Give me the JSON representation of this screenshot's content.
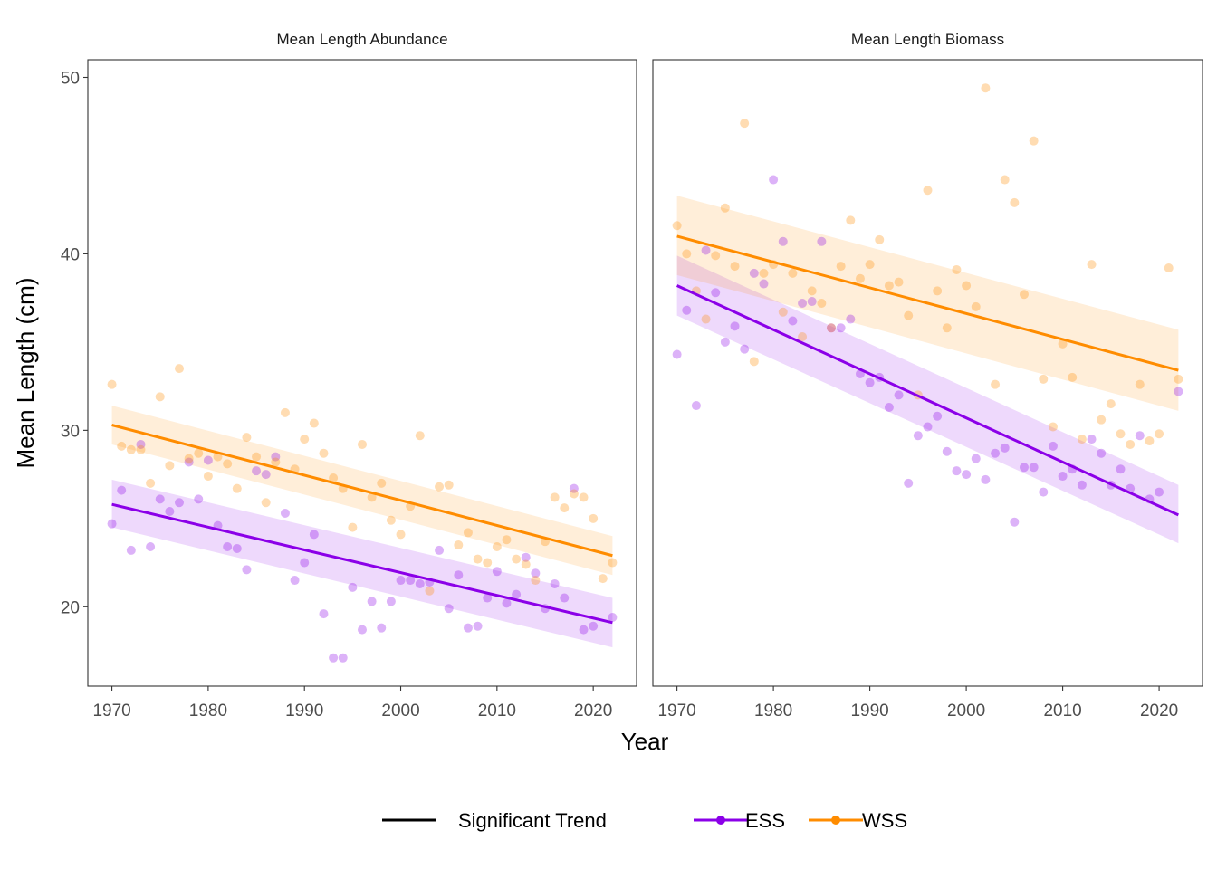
{
  "chart_data": {
    "type": "scatter",
    "xlabel": "Year",
    "ylabel": "Mean Length (cm)",
    "xlim": [
      1967.5,
      2024.5
    ],
    "ylim": [
      15.5,
      51
    ],
    "xticks": [
      1970,
      1980,
      1990,
      2000,
      2010,
      2020
    ],
    "yticks": [
      20,
      30,
      40,
      50
    ],
    "grid": false,
    "legend": {
      "position": "bottom",
      "entries": [
        {
          "label": "Significant Trend",
          "color": "#000000"
        },
        {
          "label": "ESS",
          "color": "#8B00E8"
        },
        {
          "label": "WSS",
          "color": "#FF8C00"
        }
      ]
    },
    "panels": [
      {
        "title": "Mean Length Abundance",
        "series": [
          {
            "name": "ESS",
            "color": "#8B00E8",
            "x": [
              1970,
              1971,
              1972,
              1973,
              1974,
              1975,
              1976,
              1977,
              1978,
              1979,
              1980,
              1981,
              1982,
              1983,
              1984,
              1985,
              1986,
              1987,
              1988,
              1989,
              1990,
              1991,
              1992,
              1993,
              1994,
              1995,
              1996,
              1997,
              1998,
              1999,
              2000,
              2001,
              2002,
              2003,
              2004,
              2005,
              2006,
              2007,
              2008,
              2009,
              2010,
              2011,
              2012,
              2013,
              2014,
              2015,
              2016,
              2017,
              2018,
              2019,
              2020,
              2022
            ],
            "y": [
              24.7,
              26.6,
              23.2,
              29.2,
              23.4,
              26.1,
              25.4,
              25.9,
              28.2,
              26.1,
              28.3,
              24.6,
              23.4,
              23.3,
              22.1,
              27.7,
              27.5,
              28.5,
              25.3,
              21.5,
              22.5,
              24.1,
              19.6,
              17.1,
              17.1,
              21.1,
              18.7,
              20.3,
              18.8,
              20.3,
              21.5,
              21.5,
              21.3,
              21.4,
              23.2,
              19.9,
              21.8,
              18.8,
              18.9,
              20.5,
              22.0,
              20.2,
              20.7,
              22.8,
              21.9,
              19.9,
              21.3,
              20.5,
              26.7,
              18.7,
              18.9,
              19.4
            ],
            "trend": {
              "x": [
                1970,
                2022
              ],
              "y": [
                25.8,
                19.1
              ],
              "ci_low": [
                24.5,
                17.7
              ],
              "ci_high": [
                27.2,
                20.5
              ]
            }
          },
          {
            "name": "WSS",
            "color": "#FF8C00",
            "x": [
              1970,
              1971,
              1972,
              1973,
              1974,
              1975,
              1976,
              1977,
              1978,
              1979,
              1980,
              1981,
              1982,
              1983,
              1984,
              1985,
              1986,
              1987,
              1988,
              1989,
              1990,
              1991,
              1992,
              1993,
              1994,
              1995,
              1996,
              1997,
              1998,
              1999,
              2000,
              2001,
              2002,
              2003,
              2004,
              2005,
              2006,
              2007,
              2008,
              2009,
              2010,
              2011,
              2012,
              2013,
              2014,
              2015,
              2016,
              2017,
              2018,
              2019,
              2020,
              2021,
              2022
            ],
            "y": [
              32.6,
              29.1,
              28.9,
              28.9,
              27.0,
              31.9,
              28.0,
              33.5,
              28.4,
              28.7,
              27.4,
              28.5,
              28.1,
              26.7,
              29.6,
              28.5,
              25.9,
              28.2,
              31.0,
              27.8,
              29.5,
              30.4,
              28.7,
              27.3,
              26.7,
              24.5,
              29.2,
              26.2,
              27.0,
              24.9,
              24.1,
              25.7,
              29.7,
              20.9,
              26.8,
              26.9,
              23.5,
              24.2,
              22.7,
              22.5,
              23.4,
              23.8,
              22.7,
              22.4,
              21.5,
              23.7,
              26.2,
              25.6,
              26.4,
              26.2,
              25.0,
              21.6,
              22.5
            ],
            "trend": {
              "x": [
                1970,
                2022
              ],
              "y": [
                30.3,
                22.9
              ],
              "ci_low": [
                29.2,
                21.8
              ],
              "ci_high": [
                31.4,
                24.0
              ]
            }
          }
        ]
      },
      {
        "title": "Mean Length Biomass",
        "series": [
          {
            "name": "ESS",
            "color": "#8B00E8",
            "x": [
              1970,
              1971,
              1972,
              1973,
              1974,
              1975,
              1976,
              1977,
              1978,
              1979,
              1980,
              1981,
              1982,
              1983,
              1984,
              1985,
              1986,
              1987,
              1988,
              1989,
              1990,
              1991,
              1992,
              1993,
              1994,
              1995,
              1996,
              1997,
              1998,
              1999,
              2000,
              2001,
              2002,
              2003,
              2004,
              2005,
              2006,
              2007,
              2008,
              2009,
              2010,
              2011,
              2012,
              2013,
              2014,
              2015,
              2016,
              2017,
              2018,
              2019,
              2020,
              2022
            ],
            "y": [
              34.3,
              36.8,
              31.4,
              40.2,
              37.8,
              35.0,
              35.9,
              34.6,
              38.9,
              38.3,
              44.2,
              40.7,
              36.2,
              37.2,
              37.3,
              40.7,
              35.8,
              35.8,
              36.3,
              33.2,
              32.7,
              33.0,
              31.3,
              32.0,
              27.0,
              29.7,
              30.2,
              30.8,
              28.8,
              27.7,
              27.5,
              28.4,
              27.2,
              28.7,
              29.0,
              24.8,
              27.9,
              27.9,
              26.5,
              29.1,
              27.4,
              27.8,
              26.9,
              29.5,
              28.7,
              26.9,
              27.8,
              26.7,
              29.7,
              26.1,
              26.5,
              32.2
            ],
            "trend": {
              "x": [
                1970,
                2022
              ],
              "y": [
                38.2,
                25.2
              ],
              "ci_low": [
                36.5,
                23.6
              ],
              "ci_high": [
                39.9,
                26.9
              ]
            }
          },
          {
            "name": "WSS",
            "color": "#FF8C00",
            "x": [
              1970,
              1971,
              1972,
              1973,
              1974,
              1975,
              1976,
              1977,
              1978,
              1979,
              1980,
              1981,
              1982,
              1983,
              1984,
              1985,
              1986,
              1987,
              1988,
              1989,
              1990,
              1991,
              1992,
              1993,
              1994,
              1995,
              1996,
              1997,
              1998,
              1999,
              2000,
              2001,
              2002,
              2003,
              2004,
              2005,
              2006,
              2007,
              2008,
              2009,
              2010,
              2011,
              2012,
              2013,
              2014,
              2015,
              2016,
              2017,
              2018,
              2019,
              2020,
              2021,
              2022
            ],
            "y": [
              41.6,
              40.0,
              37.9,
              36.3,
              39.9,
              42.6,
              39.3,
              47.4,
              33.9,
              38.9,
              39.4,
              36.7,
              38.9,
              35.3,
              37.9,
              37.2,
              35.8,
              39.3,
              41.9,
              38.6,
              39.4,
              40.8,
              38.2,
              38.4,
              36.5,
              32.0,
              43.6,
              37.9,
              35.8,
              39.1,
              38.2,
              37.0,
              49.4,
              32.6,
              44.2,
              42.9,
              37.7,
              46.4,
              32.9,
              30.2,
              34.9,
              33.0,
              29.5,
              39.4,
              30.6,
              31.5,
              29.8,
              29.2,
              32.6,
              29.4,
              29.8,
              39.2,
              32.9
            ],
            "trend": {
              "x": [
                1970,
                2022
              ],
              "y": [
                41.0,
                33.4
              ],
              "ci_low": [
                38.8,
                31.1
              ],
              "ci_high": [
                43.3,
                35.7
              ]
            }
          }
        ]
      }
    ]
  }
}
